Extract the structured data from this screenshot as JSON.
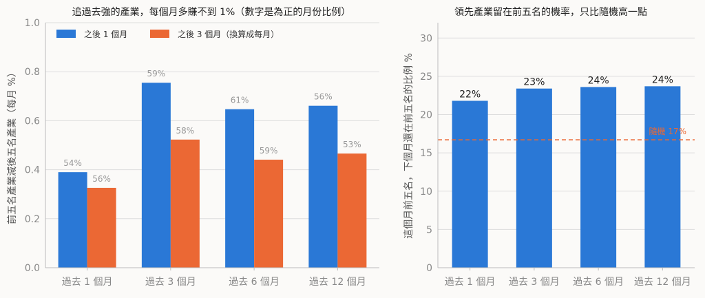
{
  "chart_data": [
    {
      "type": "bar",
      "title": "追過去強的產業，每個月多賺不到 1%（數字是為正的月份比例）",
      "ylabel": "前五名產業減後五名產業（每月 %）",
      "xlabel": "",
      "categories": [
        "過去 1 個月",
        "過去 3 個月",
        "過去 6 個月",
        "過去 12 個月"
      ],
      "ylim": [
        0,
        1.0
      ],
      "yticks": [
        "0.0",
        "0.2",
        "0.4",
        "0.6",
        "0.8",
        "1.0"
      ],
      "grid": true,
      "legend_position": "top-left",
      "series": [
        {
          "name": "之後 1 個月",
          "color": "#2a78d6",
          "values": [
            0.39,
            0.755,
            0.647,
            0.661
          ],
          "labels": [
            "54%",
            "59%",
            "61%",
            "56%"
          ]
        },
        {
          "name": "之後 3 個月（換算成每月）",
          "color": "#eb6834",
          "values": [
            0.326,
            0.523,
            0.441,
            0.466
          ],
          "labels": [
            "56%",
            "58%",
            "59%",
            "53%"
          ]
        }
      ]
    },
    {
      "type": "bar",
      "title": "領先產業留在前五名的機率，只比隨機高一點",
      "ylabel": "這個月前五名，下個月還在前五名的比例 %",
      "xlabel": "",
      "categories": [
        "過去 1 個月",
        "過去 3 個月",
        "過去 6 個月",
        "過去 12 個月"
      ],
      "ylim": [
        0,
        32
      ],
      "yticks": [
        "0",
        "5",
        "10",
        "15",
        "20",
        "25",
        "30"
      ],
      "grid": true,
      "series": [
        {
          "color": "#2a78d6",
          "values": [
            21.8,
            23.4,
            23.6,
            23.7
          ],
          "labels": [
            "22%",
            "23%",
            "24%",
            "24%"
          ]
        }
      ],
      "reference_line": {
        "value": 16.7,
        "label": "隨機 17%",
        "color": "#eb6834"
      }
    }
  ]
}
